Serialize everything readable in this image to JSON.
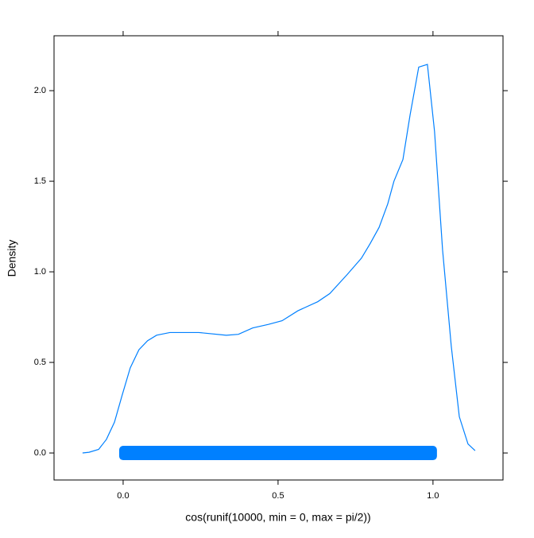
{
  "chart_data": {
    "type": "line",
    "xlabel": "cos(runif(10000, min = 0, max = pi/2))",
    "ylabel": "Density",
    "series": [
      {
        "color": "#0080ff",
        "x": [
          -0.131,
          -0.11,
          -0.079,
          -0.054,
          -0.028,
          -0.003,
          0.023,
          0.051,
          0.079,
          0.108,
          0.151,
          0.244,
          0.333,
          0.372,
          0.418,
          0.469,
          0.513,
          0.564,
          0.628,
          0.667,
          0.723,
          0.769,
          0.797,
          0.826,
          0.854,
          0.874,
          0.903,
          0.926,
          0.954,
          0.982,
          1.005,
          1.031,
          1.059,
          1.085,
          1.113,
          1.136
        ],
        "values": [
          0,
          0.004,
          0.02,
          0.075,
          0.17,
          0.32,
          0.47,
          0.57,
          0.62,
          0.65,
          0.665,
          0.665,
          0.65,
          0.655,
          0.69,
          0.71,
          0.73,
          0.785,
          0.835,
          0.88,
          0.985,
          1.075,
          1.155,
          1.245,
          1.375,
          1.5,
          1.62,
          1.865,
          2.13,
          2.145,
          1.775,
          1.12,
          0.59,
          0.2,
          0.05,
          0.013
        ]
      }
    ],
    "rug": {
      "color": "#0080ff",
      "x": [
        0,
        1
      ]
    },
    "xlim": [
      -0.223,
      1.226
    ],
    "ylim": [
      -0.149,
      2.303
    ],
    "xticks": [
      {
        "value": 0,
        "label": "0.0"
      },
      {
        "value": 0.5,
        "label": "0.5"
      },
      {
        "value": 1,
        "label": "1.0"
      }
    ],
    "yticks": [
      {
        "value": 0,
        "label": "0.0"
      },
      {
        "value": 0.5,
        "label": "0.5"
      },
      {
        "value": 1,
        "label": "1.0"
      },
      {
        "value": 1.5,
        "label": "1.5"
      },
      {
        "value": 2,
        "label": "2.0"
      }
    ]
  }
}
